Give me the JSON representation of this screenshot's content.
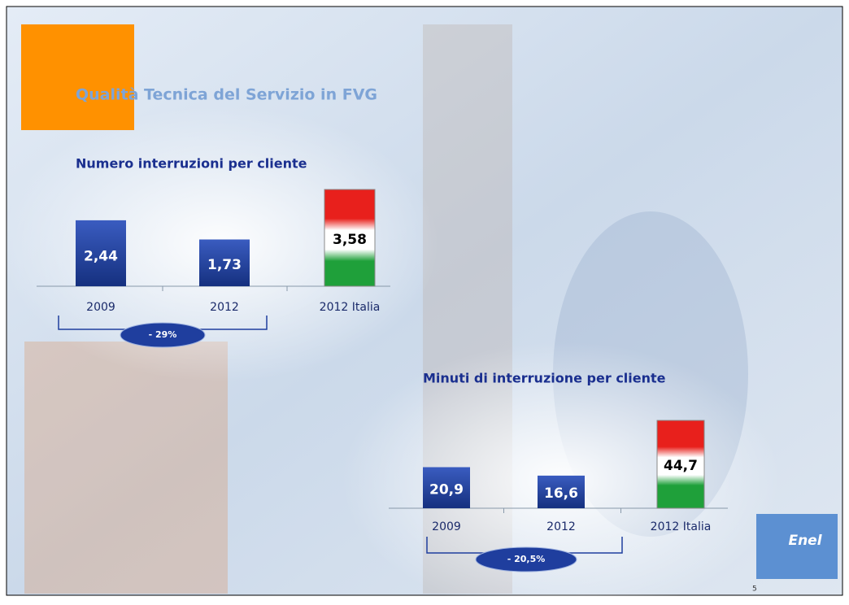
{
  "slide": {
    "title": "Qualità Tecnica del Servizio in FVG",
    "logo": "Enel",
    "page_number": "5"
  },
  "chart_data": [
    {
      "type": "bar",
      "title": "Numero interruzioni per cliente",
      "categories": [
        "2009",
        "2012",
        "2012 Italia"
      ],
      "values": [
        2.44,
        1.73,
        3.58
      ],
      "value_labels": [
        "2,44",
        "1,73",
        "3,58"
      ],
      "colors": [
        "#1f3e9e",
        "#1f3e9e",
        [
          "#e8201c",
          "#ffffff",
          "#1fa03a"
        ]
      ],
      "annotation": "- 29%"
    },
    {
      "type": "bar",
      "title": "Minuti di interruzione per cliente",
      "categories": [
        "2009",
        "2012",
        "2012 Italia"
      ],
      "values": [
        20.9,
        16.6,
        44.7
      ],
      "value_labels": [
        "20,9",
        "16,6",
        "44,7"
      ],
      "colors": [
        "#1f3e9e",
        "#1f3e9e",
        [
          "#e8201c",
          "#ffffff",
          "#1fa03a"
        ]
      ],
      "annotation": "- 20,5%"
    }
  ]
}
